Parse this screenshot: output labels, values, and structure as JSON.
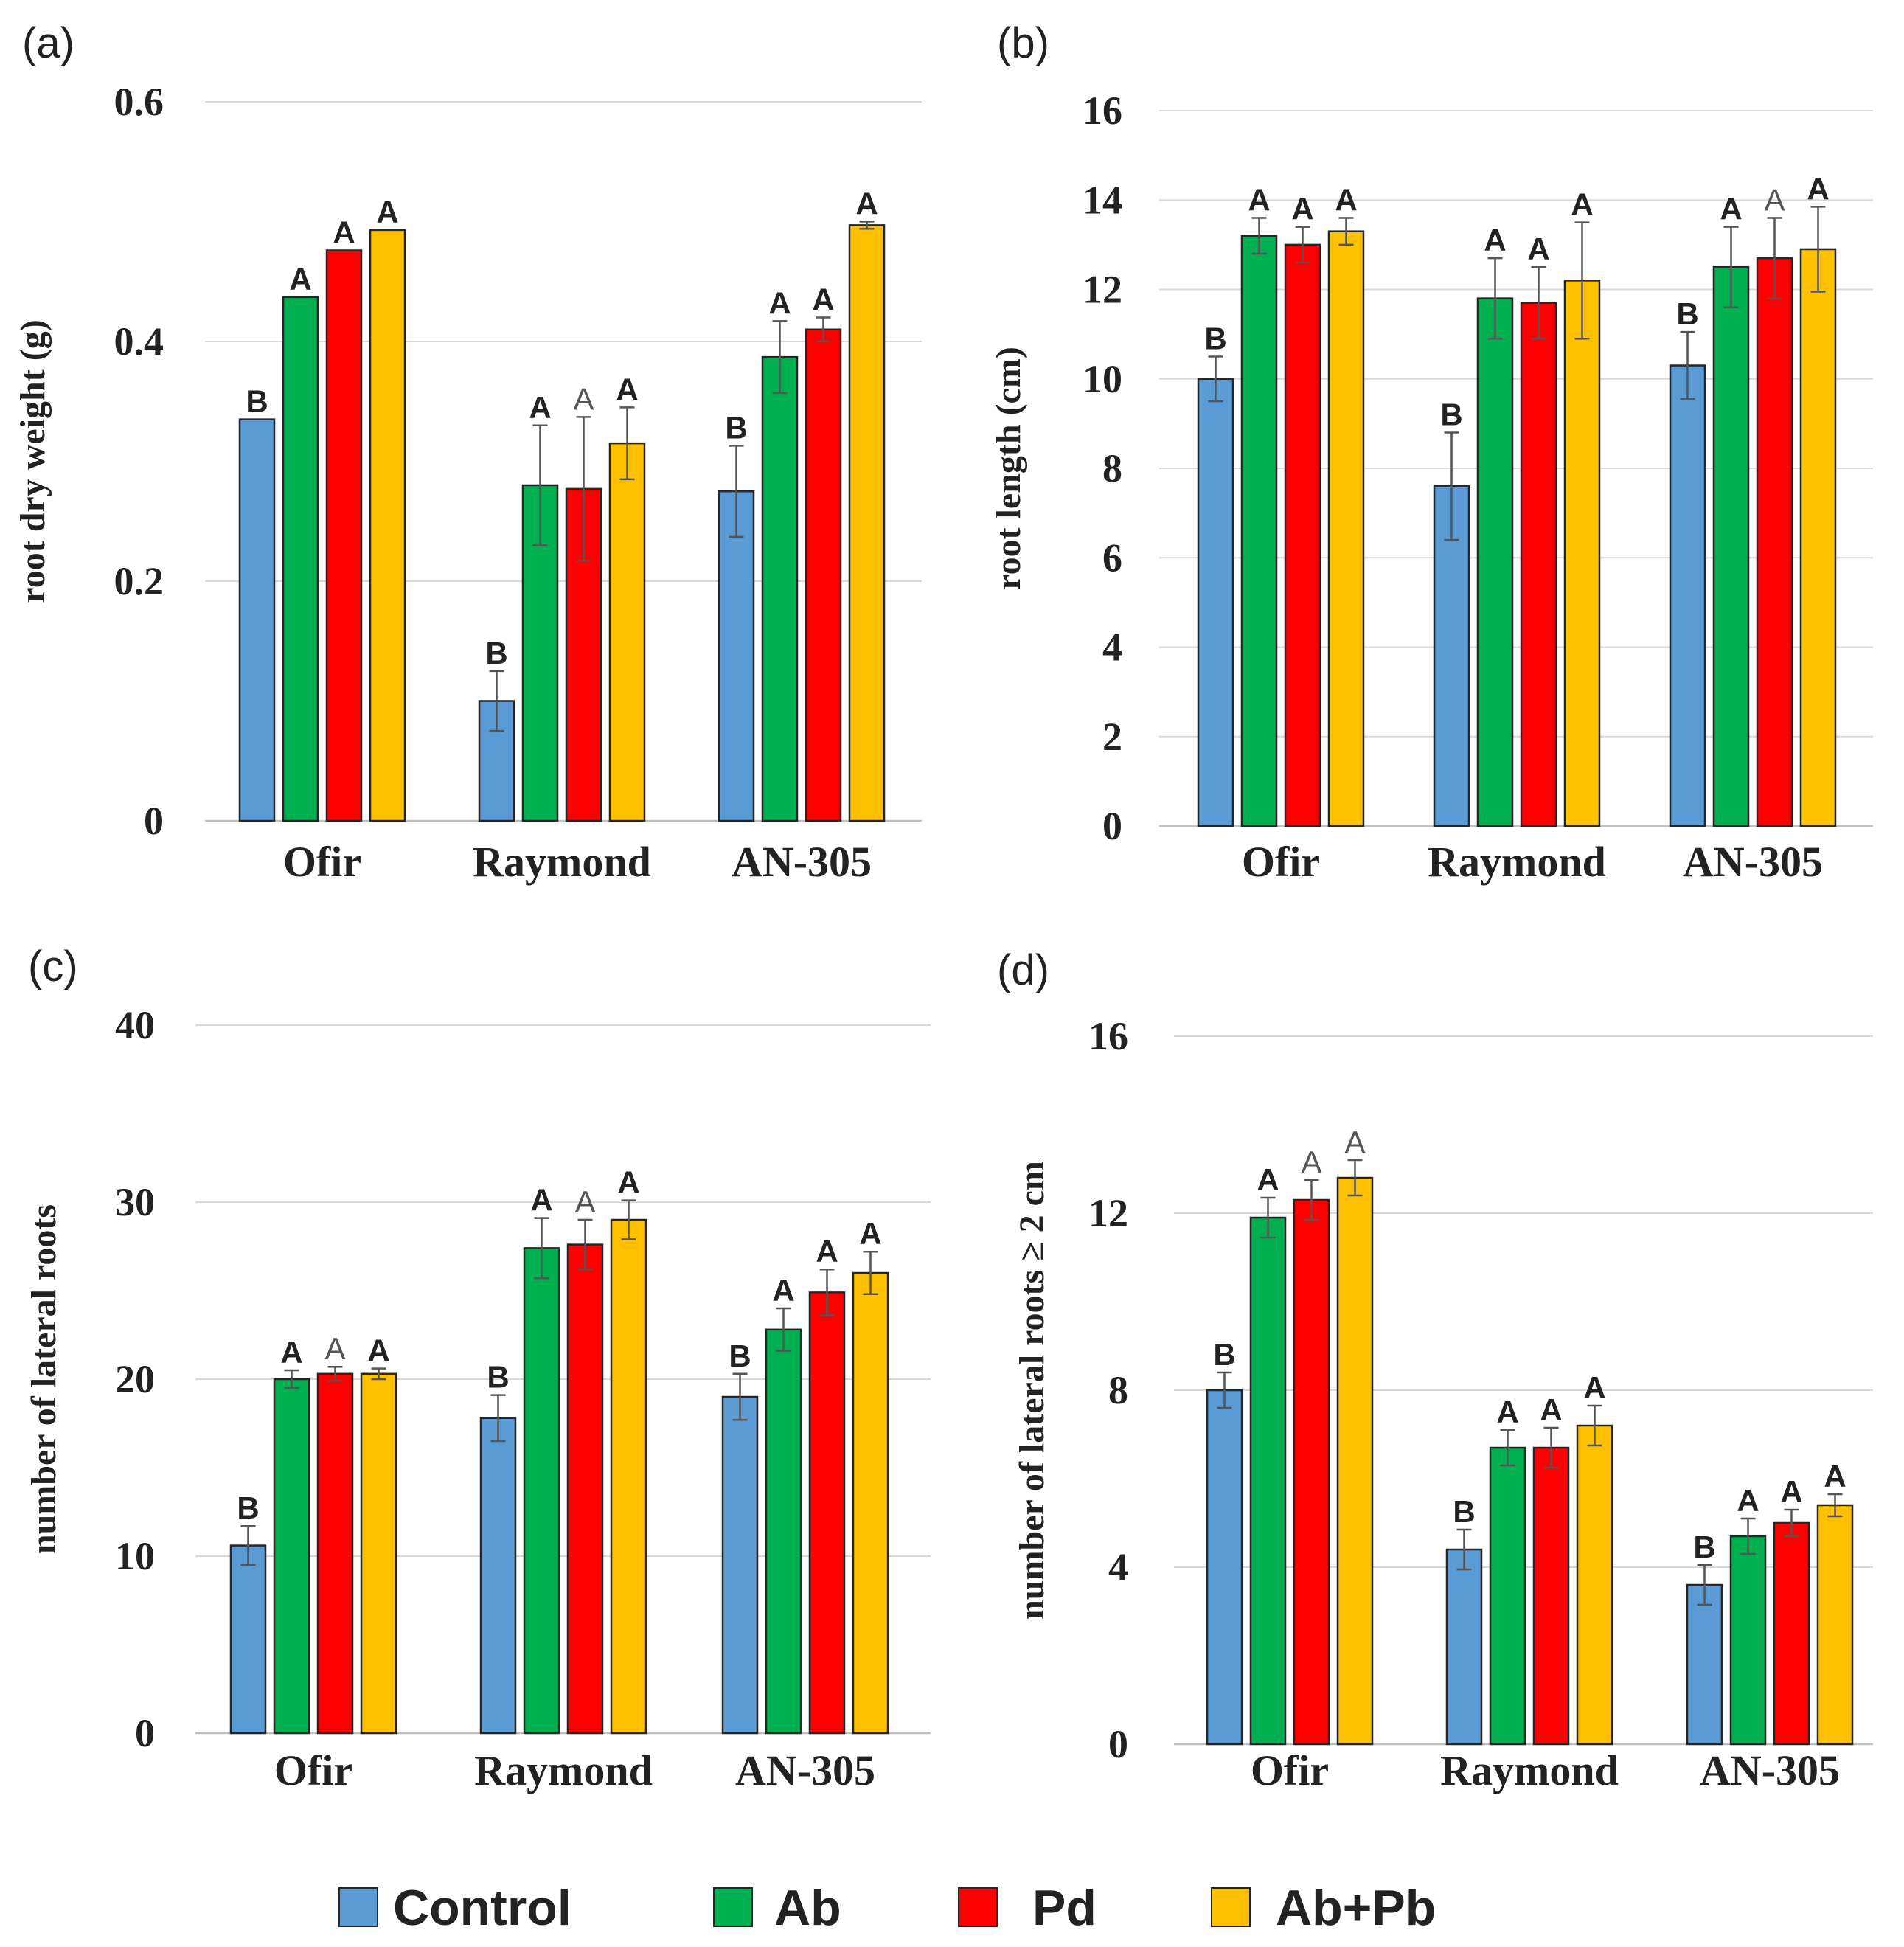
{
  "colors": {
    "Control": "#5b9bd5",
    "Ab": "#00b050",
    "Pd": "#ff0000",
    "Ab+Pb": "#ffc000"
  },
  "legend": {
    "position": "bottom",
    "items": [
      "Control",
      "Ab",
      "Pd",
      "Ab+Pb"
    ]
  },
  "chart_data": [
    {
      "panel": "(a)",
      "type": "bar",
      "ylabel": "root dry weight (g)",
      "ylim": [
        0,
        0.6
      ],
      "yticks": [
        0,
        0.2,
        0.4,
        0.6
      ],
      "ytick_labels": [
        "0",
        "0.2",
        "0.4",
        "0.6"
      ],
      "grid": true,
      "categories": [
        "Ofir",
        "Raymond",
        "AN-305"
      ],
      "series": [
        {
          "name": "Control",
          "values": [
            0.335,
            0.1,
            0.275
          ],
          "errors": [
            0.0,
            0.025,
            0.038
          ],
          "sig": [
            "B",
            "B",
            "B"
          ]
        },
        {
          "name": "Ab",
          "values": [
            0.437,
            0.28,
            0.387
          ],
          "errors": [
            0.0,
            0.05,
            0.03
          ],
          "sig": [
            "A",
            "A",
            "A"
          ]
        },
        {
          "name": "Pd",
          "values": [
            0.476,
            0.277,
            0.41
          ],
          "errors": [
            0.0,
            0.06,
            0.01
          ],
          "sig": [
            "A",
            "A",
            "A"
          ]
        },
        {
          "name": "Ab+Pb",
          "values": [
            0.493,
            0.315,
            0.497
          ],
          "errors": [
            0.0,
            0.03,
            0.003
          ],
          "sig": [
            "A",
            "A",
            "A"
          ]
        }
      ],
      "light_sig": [
        [
          1,
          2
        ]
      ]
    },
    {
      "panel": "(b)",
      "type": "bar",
      "ylabel": "root length (cm)",
      "ylim": [
        0,
        16
      ],
      "yticks": [
        0,
        2,
        4,
        6,
        8,
        10,
        12,
        14,
        16
      ],
      "ytick_labels": [
        "0",
        "2",
        "4",
        "6",
        "8",
        "10",
        "12",
        "14",
        "16"
      ],
      "grid": true,
      "categories": [
        "Ofir",
        "Raymond",
        "AN-305"
      ],
      "series": [
        {
          "name": "Control",
          "values": [
            10.0,
            7.6,
            10.3
          ],
          "errors": [
            0.5,
            1.2,
            0.75
          ],
          "sig": [
            "B",
            "B",
            "B"
          ]
        },
        {
          "name": "Ab",
          "values": [
            13.2,
            11.8,
            12.5
          ],
          "errors": [
            0.4,
            0.9,
            0.9
          ],
          "sig": [
            "A",
            "A",
            "A"
          ]
        },
        {
          "name": "Pd",
          "values": [
            13.0,
            11.7,
            12.7
          ],
          "errors": [
            0.4,
            0.8,
            0.9
          ],
          "sig": [
            "A",
            "A",
            "A"
          ]
        },
        {
          "name": "Ab+Pb",
          "values": [
            13.3,
            12.2,
            12.9
          ],
          "errors": [
            0.3,
            1.3,
            0.95
          ],
          "sig": [
            "A",
            "A",
            "A"
          ]
        }
      ],
      "light_sig": [
        [
          2,
          2
        ]
      ]
    },
    {
      "panel": "(c)",
      "type": "bar",
      "ylabel": "number of lateral roots",
      "ylim": [
        0,
        40
      ],
      "yticks": [
        0,
        10,
        20,
        30,
        40
      ],
      "ytick_labels": [
        "0",
        "10",
        "20",
        "30",
        "40"
      ],
      "grid": true,
      "categories": [
        "Ofir",
        "Raymond",
        "AN-305"
      ],
      "series": [
        {
          "name": "Control",
          "values": [
            10.6,
            17.8,
            19.0
          ],
          "errors": [
            1.1,
            1.3,
            1.3
          ],
          "sig": [
            "B",
            "B",
            "B"
          ]
        },
        {
          "name": "Ab",
          "values": [
            20.0,
            27.4,
            22.8
          ],
          "errors": [
            0.5,
            1.7,
            1.2
          ],
          "sig": [
            "A",
            "A",
            "A"
          ]
        },
        {
          "name": "Pd",
          "values": [
            20.3,
            27.6,
            24.9
          ],
          "errors": [
            0.4,
            1.4,
            1.3
          ],
          "sig": [
            "A",
            "A",
            "A"
          ]
        },
        {
          "name": "Ab+Pb",
          "values": [
            20.3,
            29.0,
            26.0
          ],
          "errors": [
            0.3,
            1.1,
            1.2
          ],
          "sig": [
            "A",
            "A",
            "A"
          ]
        }
      ],
      "light_sig": [
        [
          0,
          2
        ],
        [
          1,
          2
        ]
      ]
    },
    {
      "panel": "(d)",
      "type": "bar",
      "ylabel": "number of lateral roots ≥ 2 cm",
      "ylim": [
        0,
        16
      ],
      "yticks": [
        0,
        4,
        8,
        12,
        16
      ],
      "ytick_labels": [
        "0",
        "4",
        "8",
        "12",
        "16"
      ],
      "grid": true,
      "categories": [
        "Ofir",
        "Raymond",
        "AN-305"
      ],
      "series": [
        {
          "name": "Control",
          "values": [
            8.0,
            4.4,
            3.6
          ],
          "errors": [
            0.4,
            0.45,
            0.45
          ],
          "sig": [
            "B",
            "B",
            "B"
          ]
        },
        {
          "name": "Ab",
          "values": [
            11.9,
            6.7,
            4.7
          ],
          "errors": [
            0.45,
            0.4,
            0.4
          ],
          "sig": [
            "A",
            "A",
            "A"
          ]
        },
        {
          "name": "Pd",
          "values": [
            12.3,
            6.7,
            5.0
          ],
          "errors": [
            0.45,
            0.45,
            0.3
          ],
          "sig": [
            "A",
            "A",
            "A"
          ]
        },
        {
          "name": "Ab+Pb",
          "values": [
            12.8,
            7.2,
            5.4
          ],
          "errors": [
            0.4,
            0.45,
            0.25
          ],
          "sig": [
            "A",
            "A",
            "A"
          ]
        }
      ],
      "light_sig": [
        [
          0,
          2
        ],
        [
          0,
          3
        ]
      ]
    }
  ]
}
